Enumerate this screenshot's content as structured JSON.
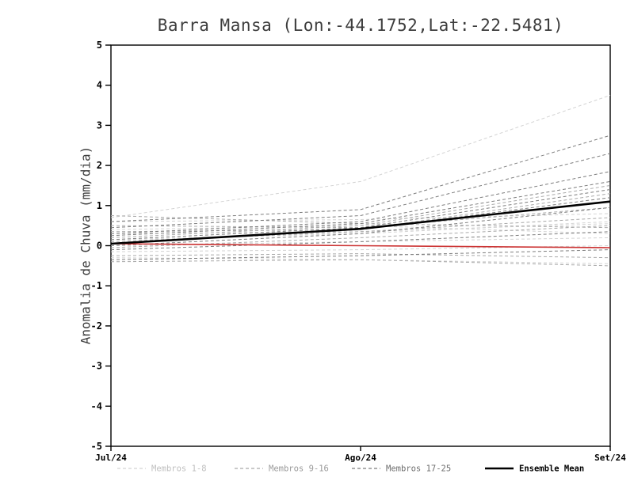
{
  "title": "Barra Mansa (Lon:-44.1752,Lat:-22.5481)",
  "chart_data": {
    "type": "line",
    "x": [
      "Jul/24",
      "Ago/24",
      "Set/24"
    ],
    "ylabel": "Anomalia de Chuva (mm/dia)",
    "ylim": [
      -5,
      5
    ],
    "ytick_step": 1,
    "groups": [
      {
        "label": "Membros 1-8",
        "color": "#d3d3d3",
        "text_color": "#bfbfbf",
        "dash": "4,3",
        "members": [
          [
            0.7,
            1.6,
            3.75
          ],
          [
            0.6,
            0.65,
            0.8
          ],
          [
            0.4,
            0.5,
            0.3
          ],
          [
            0.3,
            0.35,
            0.55
          ],
          [
            0.15,
            0.3,
            0.6
          ],
          [
            0.0,
            0.1,
            0.2
          ],
          [
            -0.15,
            -0.1,
            0.0
          ],
          [
            -0.3,
            -0.35,
            -0.45
          ]
        ]
      },
      {
        "label": "Membros 9-16",
        "color": "#a9a9a9",
        "text_color": "#9a9a9a",
        "dash": "4,3",
        "members": [
          [
            0.75,
            0.55,
            0.45
          ],
          [
            0.5,
            0.45,
            0.95
          ],
          [
            0.35,
            0.4,
            1.3
          ],
          [
            0.2,
            0.5,
            1.5
          ],
          [
            0.1,
            0.35,
            0.7
          ],
          [
            -0.05,
            0.2,
            0.5
          ],
          [
            -0.25,
            -0.2,
            -0.3
          ],
          [
            -0.4,
            -0.35,
            -0.5
          ]
        ]
      },
      {
        "label": "Membros 17-25",
        "color": "#7d7d7d",
        "text_color": "#6e6e6e",
        "dash": "4,3",
        "members": [
          [
            0.6,
            0.9,
            2.75
          ],
          [
            0.45,
            0.75,
            2.3
          ],
          [
            0.3,
            0.6,
            1.85
          ],
          [
            0.25,
            0.55,
            1.6
          ],
          [
            0.15,
            0.45,
            1.4
          ],
          [
            0.05,
            0.4,
            1.2
          ],
          [
            0.0,
            0.3,
            0.95
          ],
          [
            -0.1,
            0.1,
            0.35
          ],
          [
            -0.35,
            -0.25,
            -0.1
          ]
        ]
      }
    ],
    "ensemble_mean": {
      "label": "Ensemble Mean",
      "color": "#000000",
      "values": [
        0.05,
        0.42,
        1.1
      ]
    },
    "reference_line": {
      "color": "#cc3333",
      "values": [
        0.05,
        0.0,
        -0.05
      ]
    }
  }
}
